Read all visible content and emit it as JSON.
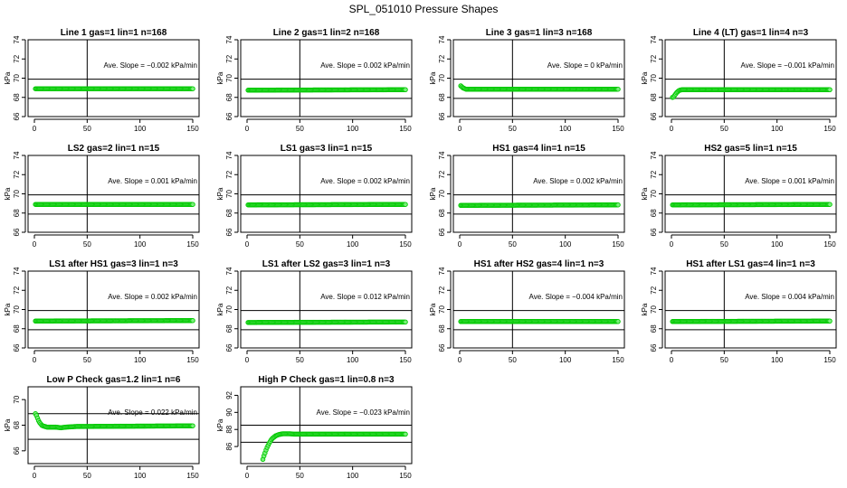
{
  "title": "SPL_051010  Pressure Shapes",
  "colors": {
    "points": "#00c800",
    "point_fill": "#7cf07c",
    "axis": "#000000"
  },
  "chart_data": [
    {
      "type": "scatter",
      "title": "Line 1 gas=1 lin=1 n=168",
      "ylabel": "kPa",
      "annotation": "Ave. Slope = −0.002  kPa/min",
      "xlim": [
        0,
        150
      ],
      "xticks": [
        0,
        50,
        100,
        150
      ],
      "ylim": [
        66,
        74
      ],
      "yticks": [
        66,
        68,
        70,
        72,
        74
      ],
      "hlines": [
        67.9,
        69.9
      ],
      "vline": 50,
      "x": [
        1,
        150
      ],
      "y": [
        68.9,
        68.9
      ]
    },
    {
      "type": "scatter",
      "title": "Line 2 gas=1 lin=2 n=168",
      "ylabel": "kPa",
      "annotation": "Ave. Slope =  0.002  kPa/min",
      "xlim": [
        0,
        150
      ],
      "xticks": [
        0,
        50,
        100,
        150
      ],
      "ylim": [
        66,
        74
      ],
      "yticks": [
        66,
        68,
        70,
        72,
        74
      ],
      "hlines": [
        67.9,
        69.9
      ],
      "vline": 50,
      "x": [
        1,
        150
      ],
      "y": [
        68.75,
        68.8
      ]
    },
    {
      "type": "scatter",
      "title": "Line 3 gas=1 lin=3 n=168",
      "ylabel": "kPa",
      "annotation": "Ave. Slope =  0  kPa/min",
      "xlim": [
        0,
        150
      ],
      "xticks": [
        0,
        50,
        100,
        150
      ],
      "ylim": [
        66,
        74
      ],
      "yticks": [
        66,
        68,
        70,
        72,
        74
      ],
      "hlines": [
        67.9,
        69.9
      ],
      "vline": 50,
      "x": [
        1,
        2,
        3,
        4,
        6,
        150
      ],
      "y": [
        69.2,
        69.1,
        69.0,
        68.95,
        68.85,
        68.85
      ]
    },
    {
      "type": "scatter",
      "title": "Line 4 (LT) gas=1 lin=4 n=3",
      "ylabel": "kPa",
      "annotation": "Ave. Slope = −0.001  kPa/min",
      "xlim": [
        0,
        150
      ],
      "xticks": [
        0,
        50,
        100,
        150
      ],
      "ylim": [
        66,
        74
      ],
      "yticks": [
        66,
        68,
        70,
        72,
        74
      ],
      "hlines": [
        67.9,
        69.9
      ],
      "vline": 50,
      "x": [
        1,
        2,
        3,
        4,
        5,
        6,
        7,
        8,
        10,
        12,
        150
      ],
      "y": [
        68.0,
        68.05,
        68.2,
        68.35,
        68.5,
        68.6,
        68.7,
        68.75,
        68.8,
        68.8,
        68.8
      ]
    },
    {
      "type": "scatter",
      "title": "LS2 gas=2 lin=1 n=15",
      "ylabel": "kPa",
      "annotation": "Ave. Slope =  0.001  kPa/min",
      "xlim": [
        0,
        150
      ],
      "xticks": [
        0,
        50,
        100,
        150
      ],
      "ylim": [
        66,
        74
      ],
      "yticks": [
        66,
        68,
        70,
        72,
        74
      ],
      "hlines": [
        67.9,
        69.9
      ],
      "vline": 50,
      "x": [
        1,
        150
      ],
      "y": [
        68.9,
        68.9
      ]
    },
    {
      "type": "scatter",
      "title": "LS1 gas=3 lin=1 n=15",
      "ylabel": "kPa",
      "annotation": "Ave. Slope =  0.002  kPa/min",
      "xlim": [
        0,
        150
      ],
      "xticks": [
        0,
        50,
        100,
        150
      ],
      "ylim": [
        66,
        74
      ],
      "yticks": [
        66,
        68,
        70,
        72,
        74
      ],
      "hlines": [
        67.9,
        69.9
      ],
      "vline": 50,
      "x": [
        1,
        150
      ],
      "y": [
        68.85,
        68.9
      ]
    },
    {
      "type": "scatter",
      "title": "HS1 gas=4 lin=1 n=15",
      "ylabel": "kPa",
      "annotation": "Ave. Slope =  0.002  kPa/min",
      "xlim": [
        0,
        150
      ],
      "xticks": [
        0,
        50,
        100,
        150
      ],
      "ylim": [
        66,
        74
      ],
      "yticks": [
        66,
        68,
        70,
        72,
        74
      ],
      "hlines": [
        67.9,
        69.9
      ],
      "vline": 50,
      "x": [
        1,
        150
      ],
      "y": [
        68.8,
        68.85
      ]
    },
    {
      "type": "scatter",
      "title": "HS2 gas=5 lin=1 n=15",
      "ylabel": "kPa",
      "annotation": "Ave. Slope =  0.001  kPa/min",
      "xlim": [
        0,
        150
      ],
      "xticks": [
        0,
        50,
        100,
        150
      ],
      "ylim": [
        66,
        74
      ],
      "yticks": [
        66,
        68,
        70,
        72,
        74
      ],
      "hlines": [
        67.9,
        69.9
      ],
      "vline": 50,
      "x": [
        1,
        150
      ],
      "y": [
        68.85,
        68.9
      ]
    },
    {
      "type": "scatter",
      "title": "LS1 after HS1 gas=3 lin=1 n=3",
      "ylabel": "kPa",
      "annotation": "Ave. Slope =  0.002  kPa/min",
      "xlim": [
        0,
        150
      ],
      "xticks": [
        0,
        50,
        100,
        150
      ],
      "ylim": [
        66,
        74
      ],
      "yticks": [
        66,
        68,
        70,
        72,
        74
      ],
      "hlines": [
        67.9,
        69.9
      ],
      "vline": 50,
      "x": [
        1,
        150
      ],
      "y": [
        68.8,
        68.85
      ]
    },
    {
      "type": "scatter",
      "title": "LS1 after LS2 gas=3 lin=1 n=3",
      "ylabel": "kPa",
      "annotation": "Ave. Slope =  0.012  kPa/min",
      "xlim": [
        0,
        150
      ],
      "xticks": [
        0,
        50,
        100,
        150
      ],
      "ylim": [
        66,
        74
      ],
      "yticks": [
        66,
        68,
        70,
        72,
        74
      ],
      "hlines": [
        67.9,
        69.9
      ],
      "vline": 50,
      "x": [
        1,
        150
      ],
      "y": [
        68.65,
        68.7
      ]
    },
    {
      "type": "scatter",
      "title": "HS1 after HS2 gas=4 lin=1 n=3",
      "ylabel": "kPa",
      "annotation": "Ave. Slope = −0.004  kPa/min",
      "xlim": [
        0,
        150
      ],
      "xticks": [
        0,
        50,
        100,
        150
      ],
      "ylim": [
        66,
        74
      ],
      "yticks": [
        66,
        68,
        70,
        72,
        74
      ],
      "hlines": [
        67.9,
        69.9
      ],
      "vline": 50,
      "x": [
        1,
        150
      ],
      "y": [
        68.75,
        68.75
      ]
    },
    {
      "type": "scatter",
      "title": "HS1 after LS1 gas=4 lin=1 n=3",
      "ylabel": "kPa",
      "annotation": "Ave. Slope =  0.004  kPa/min",
      "xlim": [
        0,
        150
      ],
      "xticks": [
        0,
        50,
        100,
        150
      ],
      "ylim": [
        66,
        74
      ],
      "yticks": [
        66,
        68,
        70,
        72,
        74
      ],
      "hlines": [
        67.9,
        69.9
      ],
      "vline": 50,
      "x": [
        1,
        150
      ],
      "y": [
        68.75,
        68.8
      ]
    },
    {
      "type": "scatter",
      "title": "Low P Check gas=1.2 lin=1 n=6",
      "ylabel": "kPa",
      "annotation": "Ave. Slope =  0.022  kPa/min",
      "xlim": [
        0,
        150
      ],
      "xticks": [
        0,
        50,
        100,
        150
      ],
      "ylim": [
        65,
        71
      ],
      "yticks": [
        66,
        68,
        70
      ],
      "hlines": [
        66.9,
        68.9
      ],
      "vline": 50,
      "x": [
        1,
        2,
        3,
        4,
        5,
        6,
        7,
        8,
        10,
        12,
        15,
        20,
        25,
        30,
        40,
        150
      ],
      "y": [
        68.9,
        68.75,
        68.55,
        68.35,
        68.2,
        68.1,
        68.0,
        67.95,
        67.9,
        67.85,
        67.85,
        67.85,
        67.8,
        67.85,
        67.9,
        67.95
      ]
    },
    {
      "type": "scatter",
      "title": "High P Check gas=1 lin=0.8 n=3",
      "ylabel": "kPa",
      "annotation": "Ave. Slope = −0.023  kPa/min",
      "xlim": [
        0,
        150
      ],
      "xticks": [
        0,
        50,
        100,
        150
      ],
      "ylim": [
        84,
        93
      ],
      "yticks": [
        86,
        88,
        90,
        92
      ],
      "hlines": [
        86.5,
        88.5
      ],
      "vline": 50,
      "x": [
        15,
        16,
        17,
        18,
        19,
        20,
        21,
        22,
        23,
        24,
        25,
        26,
        27,
        28,
        29,
        30,
        32,
        34,
        36,
        38,
        40,
        45,
        150
      ],
      "y": [
        84.5,
        84.9,
        85.25,
        85.6,
        85.9,
        86.15,
        86.4,
        86.6,
        86.8,
        86.95,
        87.05,
        87.15,
        87.25,
        87.3,
        87.35,
        87.4,
        87.45,
        87.5,
        87.5,
        87.5,
        87.5,
        87.45,
        87.45
      ]
    }
  ]
}
